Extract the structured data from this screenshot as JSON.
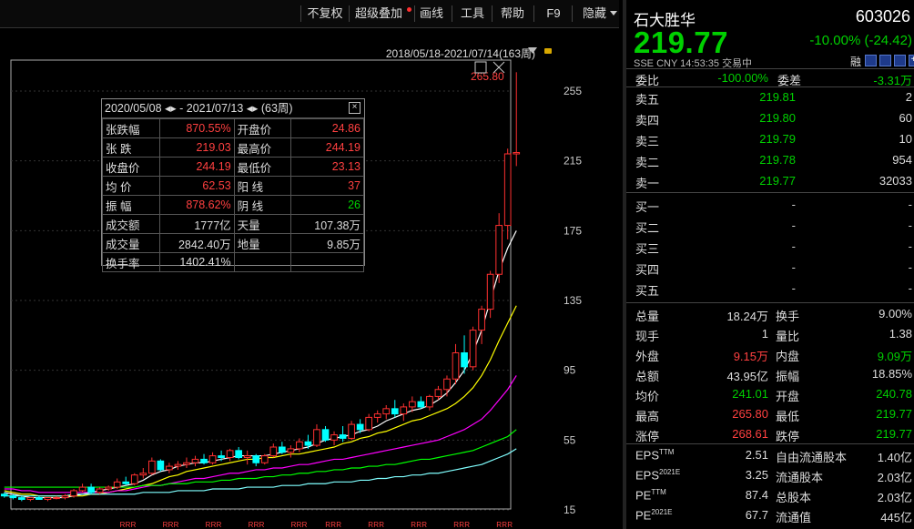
{
  "toolbar": {
    "items": [
      "不复权",
      "超级叠加",
      "画线",
      "工具",
      "帮助",
      "F9",
      "隐藏"
    ]
  },
  "chart": {
    "date_range": "2018/05/18-2021/07/14(163周)",
    "high_marker": "265.80",
    "y_ticks": [
      "255",
      "215",
      "175",
      "135",
      "95",
      "55",
      "15"
    ],
    "bottom_marker": "R",
    "colors": {
      "up": "#ff3030",
      "down": "#00ffff",
      "ma5": "#ffffff",
      "ma10": "#ffff00",
      "ma20": "#ff00ff",
      "ma30": "#00ff00",
      "ma60": "#80ffff"
    }
  },
  "chart_data": {
    "type": "candlestick",
    "ylim": [
      15,
      265.8
    ],
    "ohlc": [
      [
        24,
        25,
        22,
        23
      ],
      [
        23,
        24,
        21,
        22
      ],
      [
        22,
        23,
        20,
        21
      ],
      [
        21,
        22,
        20,
        22
      ],
      [
        22,
        23,
        21,
        21
      ],
      [
        21,
        22,
        20,
        22
      ],
      [
        22,
        23,
        21,
        22
      ],
      [
        22,
        24,
        21,
        23
      ],
      [
        23,
        27,
        22,
        26
      ],
      [
        26,
        30,
        25,
        28
      ],
      [
        28,
        30,
        24,
        25
      ],
      [
        25,
        28,
        24,
        27
      ],
      [
        27,
        29,
        26,
        28
      ],
      [
        28,
        33,
        27,
        31
      ],
      [
        31,
        34,
        29,
        30
      ],
      [
        30,
        36,
        29,
        35
      ],
      [
        35,
        39,
        33,
        36
      ],
      [
        36,
        45,
        35,
        43
      ],
      [
        43,
        44,
        37,
        38
      ],
      [
        38,
        42,
        36,
        40
      ],
      [
        40,
        43,
        38,
        41
      ],
      [
        41,
        45,
        39,
        42
      ],
      [
        42,
        46,
        40,
        44
      ],
      [
        44,
        47,
        41,
        42
      ],
      [
        42,
        48,
        41,
        46
      ],
      [
        46,
        49,
        43,
        45
      ],
      [
        45,
        50,
        43,
        49
      ],
      [
        49,
        51,
        44,
        45
      ],
      [
        45,
        49,
        41,
        46
      ],
      [
        46,
        47,
        40,
        42
      ],
      [
        42,
        47,
        41,
        46
      ],
      [
        46,
        53,
        45,
        51
      ],
      [
        51,
        54,
        47,
        48
      ],
      [
        48,
        52,
        45,
        50
      ],
      [
        50,
        56,
        48,
        54
      ],
      [
        54,
        58,
        50,
        52
      ],
      [
        52,
        64,
        51,
        61
      ],
      [
        61,
        63,
        54,
        55
      ],
      [
        55,
        60,
        52,
        58
      ],
      [
        58,
        63,
        54,
        56
      ],
      [
        56,
        66,
        55,
        64
      ],
      [
        64,
        67,
        59,
        61
      ],
      [
        61,
        70,
        60,
        68
      ],
      [
        68,
        72,
        65,
        70
      ],
      [
        70,
        75,
        67,
        73
      ],
      [
        73,
        78,
        68,
        70
      ],
      [
        70,
        76,
        66,
        74
      ],
      [
        74,
        80,
        71,
        77
      ],
      [
        77,
        80,
        73,
        74
      ],
      [
        74,
        81,
        72,
        80
      ],
      [
        80,
        86,
        78,
        84
      ],
      [
        84,
        92,
        80,
        90
      ],
      [
        90,
        110,
        87,
        105
      ],
      [
        105,
        115,
        93,
        97
      ],
      [
        97,
        120,
        95,
        118
      ],
      [
        118,
        132,
        110,
        130
      ],
      [
        130,
        152,
        125,
        150
      ],
      [
        150,
        185,
        145,
        178
      ],
      [
        178,
        222,
        170,
        219
      ],
      [
        219,
        265.8,
        212,
        219.77
      ]
    ],
    "ma": {
      "MA5": [
        25,
        24,
        23,
        22,
        22,
        22,
        22,
        22,
        23,
        24,
        25,
        26,
        27,
        28,
        29,
        30,
        32,
        35,
        37,
        38,
        40,
        41,
        42,
        42,
        43,
        44,
        45,
        46,
        46,
        46,
        46,
        47,
        48,
        49,
        50,
        51,
        53,
        55,
        56,
        57,
        58,
        60,
        61,
        63,
        66,
        68,
        70,
        72,
        73,
        75,
        78,
        82,
        88,
        95,
        105,
        118,
        135,
        152,
        165,
        175
      ],
      "MA10": [
        26,
        25,
        24,
        24,
        23,
        23,
        23,
        23,
        23,
        23,
        24,
        24,
        25,
        26,
        27,
        28,
        29,
        30,
        32,
        34,
        35,
        37,
        38,
        39,
        40,
        41,
        42,
        43,
        44,
        44,
        45,
        45,
        46,
        47,
        47,
        48,
        49,
        50,
        51,
        53,
        54,
        56,
        57,
        59,
        60,
        62,
        64,
        66,
        67,
        69,
        71,
        73,
        76,
        80,
        85,
        92,
        101,
        112,
        122,
        132
      ],
      "MA20": [
        27,
        27,
        26,
        26,
        25,
        25,
        25,
        25,
        25,
        25,
        25,
        25,
        25,
        26,
        26,
        27,
        28,
        29,
        29,
        30,
        31,
        32,
        33,
        33,
        34,
        35,
        36,
        36,
        37,
        38,
        38,
        39,
        39,
        40,
        41,
        41,
        42,
        43,
        44,
        44,
        45,
        46,
        47,
        48,
        49,
        50,
        51,
        52,
        53,
        54,
        55,
        57,
        59,
        61,
        64,
        67,
        72,
        78,
        84,
        92
      ],
      "MA30": [
        28,
        28,
        28,
        28,
        28,
        28,
        28,
        28,
        28,
        28,
        28,
        28,
        28,
        28,
        28,
        28,
        29,
        29,
        29,
        30,
        30,
        30,
        31,
        31,
        31,
        32,
        32,
        33,
        33,
        33,
        34,
        34,
        35,
        35,
        36,
        36,
        37,
        37,
        38,
        38,
        39,
        39,
        40,
        40,
        41,
        41,
        42,
        43,
        44,
        44,
        45,
        46,
        47,
        48,
        49,
        51,
        53,
        55,
        57,
        61
      ],
      "MA60": [
        23,
        23,
        23,
        23,
        23,
        23,
        23,
        23,
        24,
        24,
        24,
        24,
        24,
        24,
        24,
        24,
        25,
        25,
        25,
        25,
        26,
        26,
        26,
        26,
        27,
        27,
        27,
        27,
        28,
        28,
        28,
        28,
        29,
        29,
        29,
        30,
        30,
        30,
        31,
        31,
        31,
        32,
        32,
        33,
        33,
        34,
        34,
        35,
        35,
        36,
        36,
        37,
        38,
        39,
        40,
        41,
        43,
        45,
        47,
        50
      ]
    }
  },
  "info_box": {
    "start_date": "2020/05/08",
    "end_date": "2021/07/13",
    "arrow_symbol": "◂▸",
    "dash": "-",
    "weeks": "(63周)",
    "close_icon": "close-icon",
    "rows": [
      [
        "张跌幅",
        "870.55%",
        "开盘价",
        "24.86"
      ],
      [
        "张  跌",
        "219.03",
        "最高价",
        "244.19"
      ],
      [
        "收盘价",
        "244.19",
        "最低价",
        "23.13"
      ],
      [
        "均  价",
        "62.53",
        "阳  线",
        "37"
      ],
      [
        "振  幅",
        "878.62%",
        "阴  线",
        "26"
      ],
      [
        "成交额",
        "1777亿",
        "天量",
        "107.38万"
      ],
      [
        "成交量",
        "2842.40万",
        "地量",
        "9.85万"
      ],
      [
        "换手率",
        "1402.41%",
        "",
        ""
      ]
    ]
  },
  "quote": {
    "name": "石大胜华",
    "code": "603026",
    "price": "219.77",
    "change": "-10.00%",
    "change_abs": "(-24.42)",
    "exchange": "SSE",
    "currency": "CNY",
    "time": "14:53:35",
    "status": "交易中",
    "rong_label": "融",
    "weibi_label": "委比",
    "weibi": "-100.00%",
    "weicha_label": "委差",
    "weicha": "-3.31万",
    "asks": [
      {
        "label": "卖五",
        "price": "219.81",
        "vol": "2"
      },
      {
        "label": "卖四",
        "price": "219.80",
        "vol": "60"
      },
      {
        "label": "卖三",
        "price": "219.79",
        "vol": "10"
      },
      {
        "label": "卖二",
        "price": "219.78",
        "vol": "954"
      },
      {
        "label": "卖一",
        "price": "219.77",
        "vol": "32033"
      }
    ],
    "bids": [
      {
        "label": "买一",
        "price": "-",
        "vol": "-"
      },
      {
        "label": "买二",
        "price": "-",
        "vol": "-"
      },
      {
        "label": "买三",
        "price": "-",
        "vol": "-"
      },
      {
        "label": "买四",
        "price": "-",
        "vol": "-"
      },
      {
        "label": "买五",
        "price": "-",
        "vol": "-"
      }
    ],
    "stats": [
      [
        "总量",
        "18.24万",
        "换手",
        "9.00%"
      ],
      [
        "现手",
        "1",
        "量比",
        "1.38"
      ],
      [
        "外盘",
        "9.15万",
        "内盘",
        "9.09万"
      ],
      [
        "总额",
        "43.95亿",
        "振幅",
        "18.85%"
      ],
      [
        "均价",
        "241.01",
        "开盘",
        "240.78"
      ],
      [
        "最高",
        "265.80",
        "最低",
        "219.77"
      ],
      [
        "涨停",
        "268.61",
        "跌停",
        "219.77"
      ]
    ],
    "fin": [
      [
        "EPS",
        "TTM",
        "2.51",
        "自由流通股本",
        "1.40亿"
      ],
      [
        "EPS",
        "2021E",
        "3.25",
        "流通股本",
        "2.03亿"
      ],
      [
        "PE",
        "TTM",
        "87.4",
        "总股本",
        "2.03亿"
      ],
      [
        "PE",
        "2021E",
        "67.7",
        "流通值",
        "445亿"
      ]
    ]
  }
}
